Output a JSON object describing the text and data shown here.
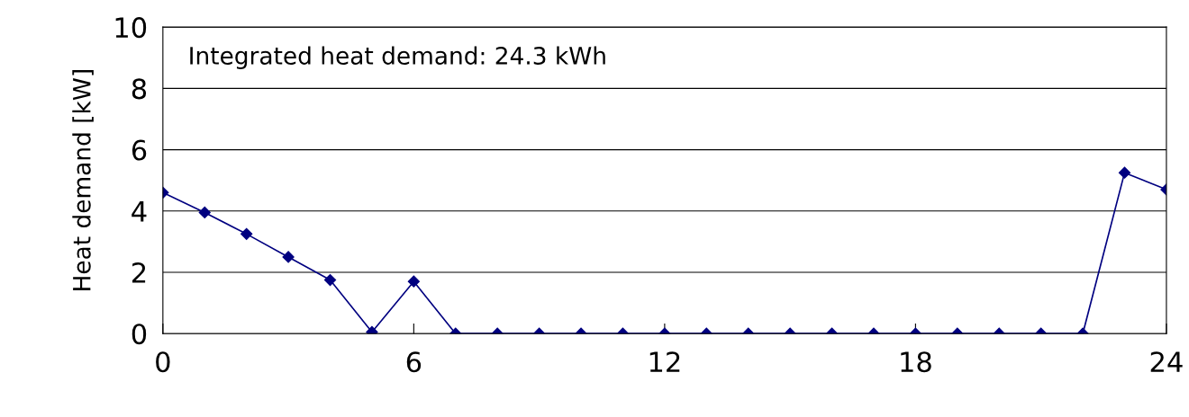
{
  "chart_data": {
    "type": "line",
    "ylabel": "Heat demand [kW]",
    "annotations": [
      "Integrated heat demand: 24.3 kWh"
    ],
    "x": [
      0,
      1,
      2,
      3,
      4,
      5,
      6,
      7,
      8,
      9,
      10,
      11,
      12,
      13,
      14,
      15,
      16,
      17,
      18,
      19,
      20,
      21,
      22,
      23,
      24
    ],
    "series": [
      {
        "color": "#000080",
        "values": [
          4.6,
          3.95,
          3.25,
          2.5,
          1.75,
          0.05,
          1.7,
          0,
          0,
          0,
          0,
          0,
          0,
          0,
          0,
          0,
          0,
          0,
          0,
          0,
          0,
          0,
          0,
          5.25,
          4.7
        ]
      }
    ],
    "xlim": [
      0,
      24
    ],
    "xticks": [
      0,
      6,
      12,
      18,
      24
    ],
    "ylim": [
      0,
      10
    ],
    "yticks": [
      0,
      2,
      4,
      6,
      8,
      10
    ],
    "grid": "y",
    "marker": "diamond",
    "line_style": "solid",
    "legend": false
  }
}
